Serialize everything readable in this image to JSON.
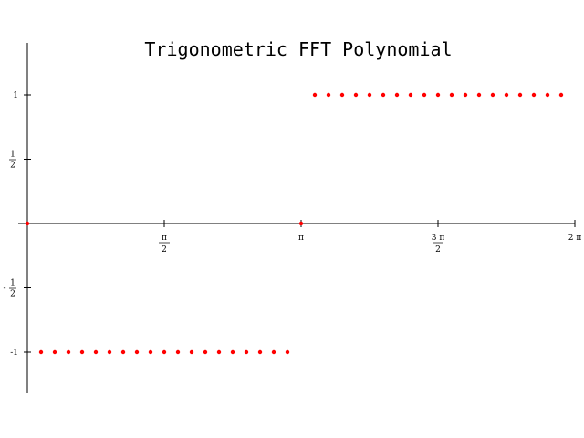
{
  "chart_data": {
    "type": "scatter",
    "title": "Trigonometric  FFT  Polynomial",
    "xlabel": "",
    "ylabel": "",
    "xlim": [
      0,
      6.2832
    ],
    "ylim": [
      -1.3,
      1.4
    ],
    "grid": false,
    "marker_color": "#ff0000",
    "x_ticks": [
      {
        "value": 1.5708,
        "num": "π",
        "den": "2"
      },
      {
        "value": 3.1416,
        "num": "π",
        "den": ""
      },
      {
        "value": 4.7124,
        "num": "3 π",
        "den": "2"
      },
      {
        "value": 6.2832,
        "num": "2 π",
        "den": ""
      }
    ],
    "y_ticks": [
      {
        "value": 1,
        "sign": "",
        "num": "1",
        "den": ""
      },
      {
        "value": 0.5,
        "sign": "",
        "num": "1",
        "den": "2"
      },
      {
        "value": -0.5,
        "sign": "-",
        "num": "1",
        "den": "2"
      },
      {
        "value": -1,
        "sign": "",
        "num": "-1",
        "den": ""
      }
    ],
    "series": [
      {
        "x": [
          0,
          0.1571,
          0.3142,
          0.4712,
          0.6283,
          0.7854,
          0.9425,
          1.0996,
          1.2566,
          1.4137,
          1.5708,
          1.7279,
          1.885,
          2.042,
          2.1991,
          2.3562,
          2.5133,
          2.6704,
          2.8274,
          2.9845,
          3.1416,
          3.2987,
          3.4558,
          3.6128,
          3.7699,
          3.927,
          4.0841,
          4.2412,
          4.3982,
          4.5553,
          4.7124,
          4.8695,
          5.0265,
          5.1836,
          5.3407,
          5.4978,
          5.6549,
          5.8119,
          5.969,
          6.1261
        ],
        "y": [
          0,
          -1,
          -1,
          -1,
          -1,
          -1,
          -1,
          -1,
          -1,
          -1,
          -1,
          -1,
          -1,
          -1,
          -1,
          -1,
          -1,
          -1,
          -1,
          -1,
          0,
          1,
          1,
          1,
          1,
          1,
          1,
          1,
          1,
          1,
          1,
          1,
          1,
          1,
          1,
          1,
          1,
          1,
          1,
          1
        ]
      }
    ]
  }
}
